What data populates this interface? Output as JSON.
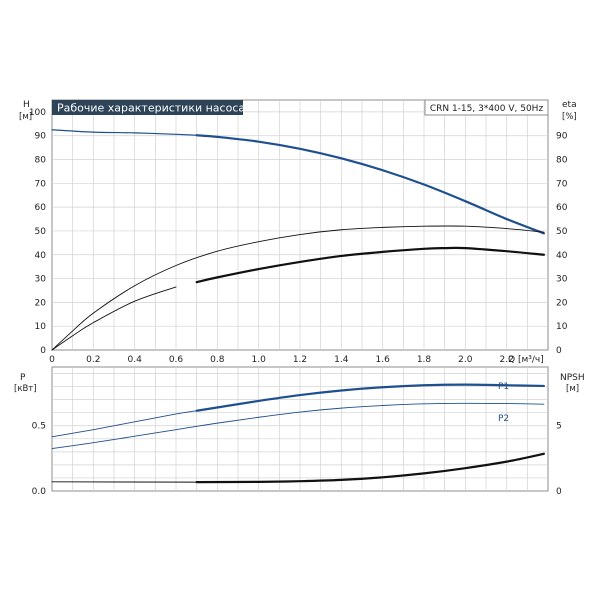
{
  "header": {
    "title": "Рабочие характеристики насоса",
    "model": "CRN 1-15, 3*400 V, 50Hz",
    "title_bg": "#2d4357"
  },
  "axes": {
    "h_label": "H",
    "h_unit": "[м]",
    "eta_label": "eta",
    "eta_unit": "[%]",
    "q_label": "Q [м³/ч]",
    "p_label": "P",
    "p_unit": "[кВт]",
    "npsh_label": "NPSH",
    "npsh_unit": "[м]"
  },
  "chart_data": [
    {
      "type": "line",
      "panel": "head-efficiency",
      "title": "Рабочие характеристики насоса",
      "xlabel": "Q [м³/ч]",
      "ylabel_left": "H [м]",
      "ylabel_right": "eta [%]",
      "xlim": [
        0,
        2.4
      ],
      "ylim": [
        0,
        105
      ],
      "xticks": [
        "0",
        "0.2",
        "0.4",
        "0.6",
        "0.8",
        "1.0",
        "1.2",
        "1.4",
        "1.6",
        "1.8",
        "2.0",
        "2.2"
      ],
      "yticks_left": [
        "0",
        "10",
        "20",
        "30",
        "40",
        "50",
        "60",
        "70",
        "80",
        "90",
        "100"
      ],
      "yticks_right": [
        "0",
        "10",
        "20",
        "30",
        "40",
        "50",
        "60",
        "70",
        "80",
        "90"
      ],
      "grid": true,
      "series": [
        {
          "axis": "left",
          "color": "#1e4f8f",
          "width": 1.2,
          "points": [
            [
              0,
              92.5
            ],
            [
              0.2,
              91.5
            ],
            [
              0.4,
              91.2
            ],
            [
              0.6,
              90.6
            ],
            [
              0.7,
              90.2
            ]
          ]
        },
        {
          "axis": "left",
          "color": "#1e4f8f",
          "width": 2.2,
          "points": [
            [
              0.7,
              90.2
            ],
            [
              0.8,
              89.5
            ],
            [
              1.0,
              87.5
            ],
            [
              1.2,
              84.5
            ],
            [
              1.4,
              80.5
            ],
            [
              1.6,
              75.5
            ],
            [
              1.8,
              69.5
            ],
            [
              2.0,
              62.5
            ],
            [
              2.2,
              55.0
            ],
            [
              2.38,
              49.0
            ]
          ]
        },
        {
          "axis": "right",
          "color": "#111111",
          "width": 0.9,
          "points": [
            [
              0,
              0
            ],
            [
              0.1,
              8
            ],
            [
              0.2,
              15.5
            ],
            [
              0.4,
              27
            ],
            [
              0.6,
              35.5
            ],
            [
              0.8,
              41.5
            ],
            [
              1.0,
              45.5
            ],
            [
              1.2,
              48.5
            ],
            [
              1.4,
              50.5
            ],
            [
              1.6,
              51.5
            ],
            [
              1.8,
              52
            ],
            [
              2.0,
              52
            ],
            [
              2.2,
              51
            ],
            [
              2.38,
              49.5
            ]
          ]
        },
        {
          "axis": "right",
          "color": "#111111",
          "width": 0.9,
          "points": [
            [
              0,
              0
            ],
            [
              0.1,
              6
            ],
            [
              0.2,
              11.5
            ],
            [
              0.4,
              20.5
            ],
            [
              0.6,
              26.5
            ]
          ]
        },
        {
          "axis": "right",
          "color": "#111111",
          "width": 2.2,
          "points": [
            [
              0.7,
              28.5
            ],
            [
              0.8,
              30.5
            ],
            [
              1.0,
              34
            ],
            [
              1.2,
              37
            ],
            [
              1.4,
              39.5
            ],
            [
              1.6,
              41.2
            ],
            [
              1.8,
              42.5
            ],
            [
              1.9,
              42.8
            ],
            [
              2.0,
              42.8
            ],
            [
              2.2,
              41.5
            ],
            [
              2.38,
              40
            ]
          ]
        }
      ]
    },
    {
      "type": "line",
      "panel": "power-npsh",
      "ylabel_left": "P [кВт]",
      "ylabel_right": "NPSH [м]",
      "xlim": [
        0,
        2.4
      ],
      "ylim_left": [
        0,
        0.95
      ],
      "ylim_right": [
        0,
        9.5
      ],
      "yticks_left": [
        "0.0",
        "0.5"
      ],
      "yticks_right": [
        "0",
        "5"
      ],
      "grid": true,
      "series": [
        {
          "name": "P1",
          "axis": "left",
          "color": "#1e4f8f",
          "width": 0.9,
          "points": [
            [
              0,
              0.415
            ],
            [
              0.2,
              0.47
            ],
            [
              0.4,
              0.53
            ],
            [
              0.6,
              0.59
            ],
            [
              0.7,
              0.615
            ]
          ]
        },
        {
          "name": "P1",
          "axis": "left",
          "color": "#1e4f8f",
          "width": 2.2,
          "points": [
            [
              0.7,
              0.615
            ],
            [
              1.0,
              0.69
            ],
            [
              1.2,
              0.735
            ],
            [
              1.4,
              0.77
            ],
            [
              1.6,
              0.795
            ],
            [
              1.8,
              0.81
            ],
            [
              2.0,
              0.815
            ],
            [
              2.2,
              0.81
            ],
            [
              2.38,
              0.805
            ]
          ]
        },
        {
          "name": "P2",
          "axis": "left",
          "color": "#1e4f8f",
          "width": 0.9,
          "points": [
            [
              0,
              0.325
            ],
            [
              0.2,
              0.37
            ],
            [
              0.4,
              0.42
            ],
            [
              0.6,
              0.47
            ],
            [
              0.8,
              0.52
            ],
            [
              1.0,
              0.565
            ],
            [
              1.2,
              0.605
            ],
            [
              1.4,
              0.635
            ],
            [
              1.6,
              0.655
            ],
            [
              1.8,
              0.668
            ],
            [
              2.0,
              0.672
            ],
            [
              2.2,
              0.67
            ],
            [
              2.38,
              0.665
            ]
          ]
        },
        {
          "axis": "right",
          "color": "#111111",
          "width": 0.9,
          "points": [
            [
              0,
              0.7
            ],
            [
              0.7,
              0.68
            ]
          ]
        },
        {
          "axis": "right",
          "color": "#111111",
          "width": 2.2,
          "points": [
            [
              0.7,
              0.68
            ],
            [
              1.0,
              0.7
            ],
            [
              1.2,
              0.75
            ],
            [
              1.4,
              0.85
            ],
            [
              1.6,
              1.05
            ],
            [
              1.8,
              1.35
            ],
            [
              2.0,
              1.75
            ],
            [
              2.2,
              2.25
            ],
            [
              2.38,
              2.85
            ]
          ]
        }
      ]
    }
  ]
}
